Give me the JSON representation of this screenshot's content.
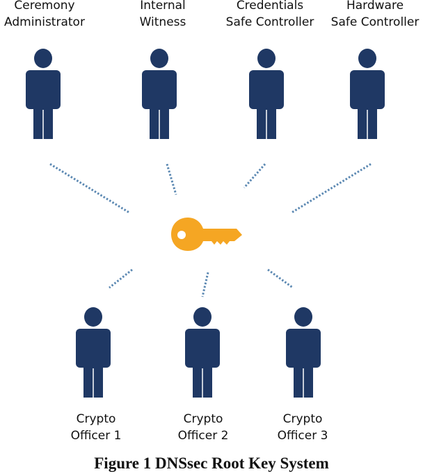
{
  "diagram": {
    "top_roles": [
      {
        "line1": "Ceremony",
        "line2": "Administrator"
      },
      {
        "line1": "Internal",
        "line2": "Witness"
      },
      {
        "line1": "Credentials",
        "line2": "Safe Controller"
      },
      {
        "line1": "Hardware",
        "line2": "Safe Controller"
      }
    ],
    "bottom_roles": [
      {
        "line1": "Crypto",
        "line2": "Officer 1"
      },
      {
        "line1": "Crypto",
        "line2": "Officer 2"
      },
      {
        "line1": "Crypto",
        "line2": "Officer 3"
      }
    ],
    "center_icon": "key-icon",
    "person_icon": "person-icon",
    "caption": "Figure 1 DNSsec Root Key System"
  },
  "colors": {
    "person": "#1f3864",
    "person_legs_gap": "#ffffff",
    "key": "#f5a623",
    "connector": "#5b88b2"
  }
}
